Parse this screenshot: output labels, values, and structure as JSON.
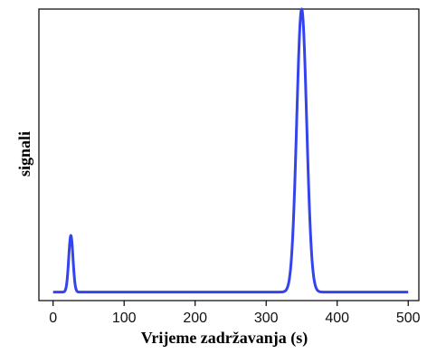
{
  "chart_data": {
    "type": "line",
    "title": "",
    "xlabel": "Vrijeme zadržavanja (s)",
    "ylabel": "signali",
    "xlim": [
      -20,
      515
    ],
    "ylim": [
      -0.03,
      1.0
    ],
    "xticks": [
      "0",
      "100",
      "200",
      "300",
      "400",
      "500"
    ],
    "grid": false,
    "legend": "none",
    "series": [
      {
        "color": "#3344ee",
        "peaks": [
          {
            "x": 25,
            "height": 0.2,
            "width": 3
          },
          {
            "x": 350,
            "height": 1.0,
            "width": 7
          }
        ],
        "x": [
          0,
          15,
          20,
          22,
          24,
          25,
          26,
          28,
          30,
          35,
          100,
          200,
          300,
          320,
          330,
          335,
          340,
          345,
          348,
          350,
          352,
          355,
          360,
          365,
          370,
          380,
          400,
          500
        ],
        "y": [
          0,
          0.002,
          0.05,
          0.11,
          0.19,
          0.2,
          0.19,
          0.11,
          0.05,
          0.002,
          0,
          0,
          0,
          0.0001,
          0.017,
          0.078,
          0.36,
          0.78,
          0.96,
          1.0,
          0.96,
          0.78,
          0.36,
          0.078,
          0.017,
          0.0001,
          0,
          0
        ]
      }
    ],
    "colors": {
      "line": "#3344ee",
      "axis": "#000000",
      "background": "#ffffff"
    }
  }
}
